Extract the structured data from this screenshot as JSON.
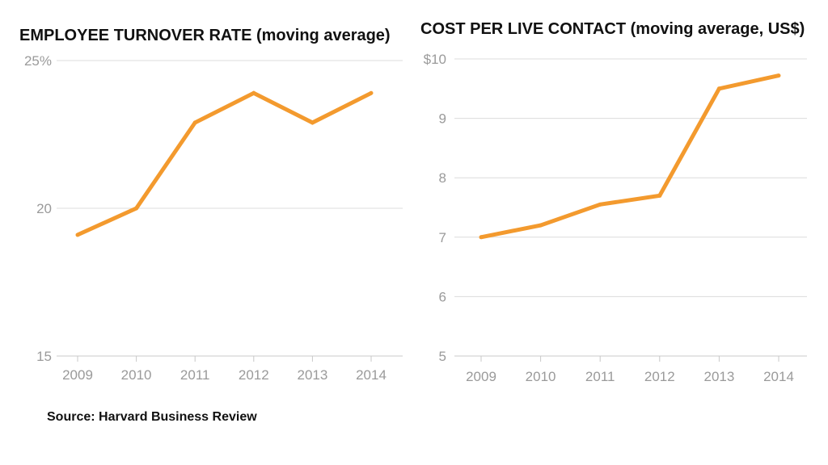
{
  "source_label": "Source: Harvard Business Review",
  "colors": {
    "line": "#f39a2e",
    "grid": "#dcdcdc",
    "tick_text": "#9a9a9a",
    "title_text": "#111111"
  },
  "chart_data": [
    {
      "type": "line",
      "title": "EMPLOYEE TURNOVER RATE (moving average)",
      "categories": [
        "2009",
        "2010",
        "2011",
        "2012",
        "2013",
        "2014"
      ],
      "values": [
        19.1,
        20.0,
        22.9,
        23.9,
        22.9,
        23.9
      ],
      "ylim": [
        15,
        25
      ],
      "yticks": [
        {
          "value": 25,
          "label": "25%"
        },
        {
          "value": 20,
          "label": "20"
        },
        {
          "value": 15,
          "label": "15"
        }
      ],
      "grid": true,
      "xlabel": "",
      "ylabel": ""
    },
    {
      "type": "line",
      "title": "COST PER LIVE CONTACT (moving average, US$)",
      "categories": [
        "2009",
        "2010",
        "2011",
        "2012",
        "2013",
        "2014"
      ],
      "values": [
        7.0,
        7.2,
        7.55,
        7.7,
        9.5,
        9.72
      ],
      "ylim": [
        5,
        10
      ],
      "yticks": [
        {
          "value": 10,
          "label": "$10"
        },
        {
          "value": 9,
          "label": "9"
        },
        {
          "value": 8,
          "label": "8"
        },
        {
          "value": 7,
          "label": "7"
        },
        {
          "value": 6,
          "label": "6"
        },
        {
          "value": 5,
          "label": "5"
        }
      ],
      "grid": true,
      "xlabel": "",
      "ylabel": ""
    }
  ]
}
